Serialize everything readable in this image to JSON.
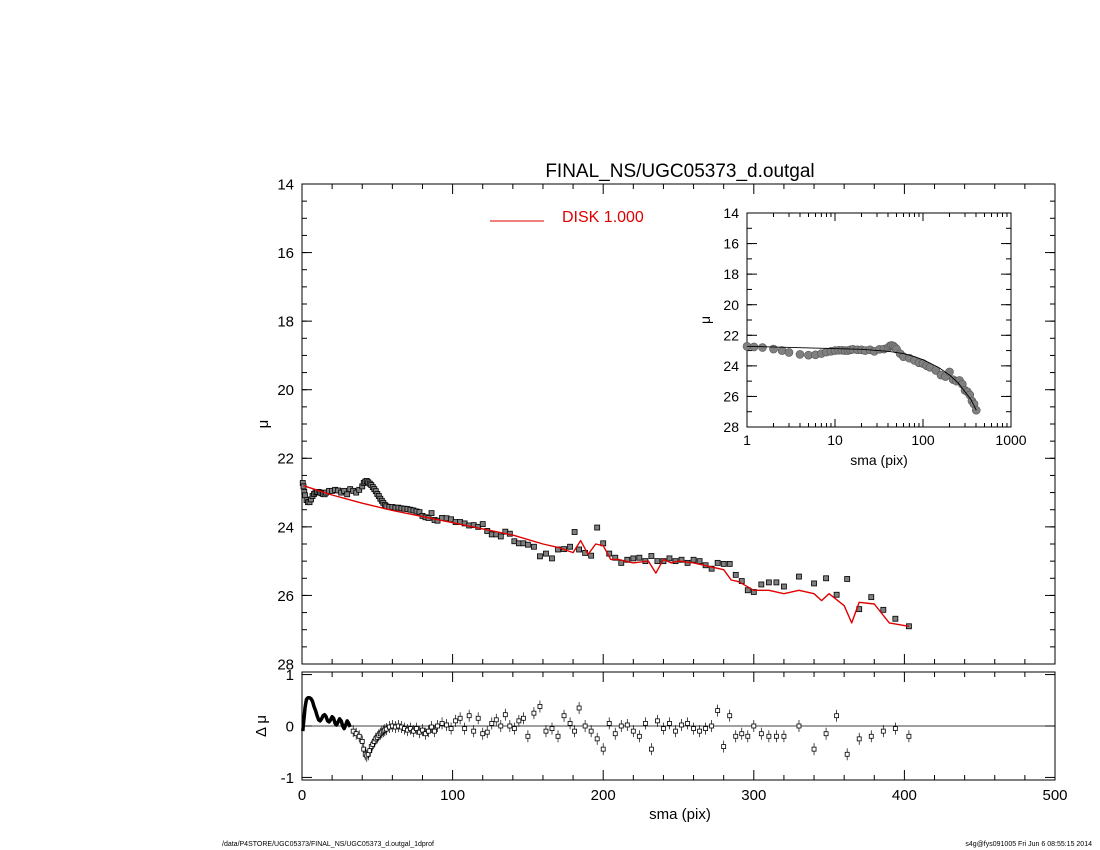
{
  "title": "FINAL_NS/UGC05373_d.outgal",
  "footer": {
    "left": "/data/P4STORE/UGC05373/FINAL_NS/UGC05373_d.outgal_1dprof",
    "right": "s4g@fys091005  Fri Jun  6 08:55:15 2014"
  },
  "colors": {
    "model": "#e00000",
    "data": "#000000",
    "marker_fill": "#808080"
  },
  "chart_data": [
    {
      "id": "main-profile",
      "type": "scatter",
      "title": "FINAL_NS/UGC05373_d.outgal",
      "xlabel": "",
      "ylabel": "μ",
      "xlim": [
        0,
        500
      ],
      "ylim": [
        28,
        14
      ],
      "yaxis_inverted": true,
      "x_tick_labels": [],
      "y_ticks": [
        14,
        16,
        18,
        20,
        22,
        24,
        26,
        28
      ],
      "y_tick_labels": [
        "14",
        "16",
        "18",
        "20",
        "22",
        "24",
        "26",
        "28"
      ],
      "legend": {
        "position": "top-center",
        "entries": [
          {
            "label": "DISK  1.000",
            "color": "#e00000"
          }
        ]
      },
      "series": [
        {
          "name": "DISK  1.000",
          "kind": "line",
          "color": "#e00000",
          "x": [
            1,
            20,
            40,
            60,
            80,
            100,
            120,
            140,
            160,
            170,
            180,
            185,
            190,
            195,
            200,
            205,
            210,
            220,
            230,
            235,
            240,
            245,
            250,
            260,
            270,
            280,
            285,
            290,
            300,
            310,
            320,
            330,
            340,
            345,
            350,
            360,
            365,
            370,
            380,
            390,
            403
          ],
          "y": [
            22.8,
            23.07,
            23.31,
            23.52,
            23.7,
            23.88,
            24.06,
            24.24,
            24.5,
            24.6,
            24.75,
            24.4,
            24.8,
            24.5,
            24.55,
            24.95,
            24.95,
            25.05,
            25.0,
            25.35,
            24.95,
            25.05,
            25.0,
            25.05,
            25.15,
            25.25,
            25.55,
            25.6,
            25.85,
            25.85,
            25.95,
            25.85,
            25.95,
            26.15,
            25.95,
            26.3,
            26.8,
            26.2,
            26.25,
            26.8,
            26.9
          ]
        },
        {
          "name": "",
          "kind": "points",
          "x": [
            0.5,
            1,
            1.5,
            2,
            3,
            4,
            5,
            6,
            7,
            8,
            9,
            10,
            11,
            12,
            13,
            14,
            15,
            16,
            18,
            20,
            22,
            24,
            26,
            28,
            30,
            32,
            34,
            36,
            38,
            40,
            41,
            42,
            43,
            44,
            45,
            46,
            47,
            48,
            49,
            50,
            51,
            52,
            53,
            54,
            55,
            56,
            58,
            60,
            62,
            64,
            66,
            68,
            70,
            72,
            74,
            76,
            78,
            80,
            82,
            84,
            86,
            88,
            90,
            93,
            96,
            99,
            102,
            105,
            108,
            111,
            114,
            117,
            120,
            123,
            126,
            129,
            132,
            135,
            138,
            141,
            144,
            147,
            150,
            154,
            158,
            162,
            166,
            170,
            174,
            178,
            181,
            184,
            188,
            192,
            196,
            200,
            204,
            208,
            212,
            216,
            220,
            224,
            228,
            232,
            236,
            240,
            244,
            248,
            252,
            256,
            260,
            264,
            268,
            272,
            276,
            280,
            284,
            288,
            292,
            296,
            300,
            305,
            310,
            315,
            320,
            330,
            340,
            348,
            355,
            362,
            370,
            378,
            386,
            394,
            403
          ],
          "y": [
            22.72,
            22.82,
            22.98,
            23.08,
            23.22,
            23.28,
            23.28,
            23.2,
            23.1,
            23.04,
            23.0,
            22.98,
            22.98,
            23.0,
            23.02,
            23.04,
            23.05,
            23.0,
            22.95,
            22.95,
            22.92,
            22.94,
            23.0,
            22.95,
            23.05,
            22.9,
            22.95,
            23.0,
            22.92,
            22.82,
            22.72,
            22.68,
            22.66,
            22.7,
            22.74,
            22.78,
            22.84,
            22.9,
            22.96,
            23.04,
            23.1,
            23.18,
            23.24,
            23.3,
            23.36,
            23.4,
            23.42,
            23.42,
            23.44,
            23.44,
            23.46,
            23.47,
            23.48,
            23.5,
            23.52,
            23.55,
            23.57,
            23.68,
            23.72,
            23.74,
            23.6,
            23.8,
            23.82,
            23.74,
            23.75,
            23.78,
            23.86,
            23.86,
            23.9,
            23.96,
            23.95,
            24.0,
            23.92,
            24.12,
            24.22,
            24.22,
            24.28,
            24.14,
            24.2,
            24.42,
            24.48,
            24.48,
            24.52,
            24.58,
            24.86,
            24.78,
            24.92,
            24.66,
            24.65,
            24.58,
            24.15,
            24.66,
            24.76,
            24.84,
            24.02,
            24.48,
            24.78,
            24.9,
            25.05,
            24.96,
            24.92,
            24.9,
            25.0,
            24.85,
            25.0,
            25.0,
            24.92,
            25.0,
            24.96,
            25.05,
            24.96,
            25.0,
            25.12,
            25.22,
            25.05,
            25.08,
            25.08,
            25.4,
            25.58,
            25.85,
            25.9,
            25.68,
            25.62,
            25.62,
            25.74,
            25.45,
            25.65,
            25.5,
            25.98,
            25.52,
            26.4,
            26.05,
            26.42,
            26.68,
            26.9
          ]
        }
      ]
    },
    {
      "id": "residuals",
      "type": "scatter",
      "title": "",
      "xlabel": "sma (pix)",
      "ylabel": "Δ μ",
      "xlim": [
        0,
        500
      ],
      "ylim": [
        -1.05,
        1.05
      ],
      "x_ticks": [
        0,
        100,
        200,
        300,
        400,
        500
      ],
      "x_tick_labels": [
        "0",
        "100",
        "200",
        "300",
        "400",
        "500"
      ],
      "y_ticks": [
        -1,
        0,
        1
      ],
      "y_tick_labels": [
        "-1",
        "0",
        "1"
      ],
      "zero_line": true,
      "series": [
        {
          "name": "",
          "kind": "curve",
          "x": [
            0.5,
            1,
            1.5,
            2,
            2.5,
            3,
            4,
            5,
            6,
            7,
            8,
            9,
            10,
            11,
            12,
            13,
            14,
            15,
            16,
            17,
            18,
            19,
            20,
            21,
            22,
            23,
            24,
            25,
            26,
            27,
            28,
            29,
            30,
            31,
            32
          ],
          "y": [
            -0.1,
            0.05,
            0.2,
            0.35,
            0.45,
            0.52,
            0.55,
            0.55,
            0.53,
            0.48,
            0.38,
            0.3,
            0.2,
            0.12,
            0.1,
            0.14,
            0.2,
            0.22,
            0.18,
            0.1,
            0.08,
            0.12,
            0.18,
            0.15,
            0.05,
            0.02,
            0.08,
            0.14,
            0.1,
            0.0,
            -0.05,
            0.02,
            0.1,
            0.05,
            -0.02
          ]
        },
        {
          "name": "",
          "kind": "points",
          "x": [
            34,
            36,
            38,
            40,
            41,
            42,
            43,
            44,
            45,
            46,
            47,
            48,
            49,
            50,
            51,
            52,
            53,
            54,
            55,
            56,
            58,
            60,
            62,
            64,
            66,
            68,
            70,
            72,
            74,
            76,
            78,
            80,
            82,
            84,
            86,
            88,
            90,
            93,
            96,
            99,
            102,
            105,
            108,
            111,
            114,
            117,
            120,
            123,
            126,
            129,
            132,
            135,
            138,
            141,
            144,
            147,
            150,
            154,
            158,
            162,
            166,
            170,
            174,
            178,
            181,
            184,
            188,
            192,
            196,
            200,
            204,
            208,
            212,
            216,
            220,
            224,
            228,
            232,
            236,
            240,
            244,
            248,
            252,
            256,
            260,
            264,
            268,
            272,
            276,
            280,
            284,
            288,
            292,
            296,
            300,
            305,
            310,
            315,
            320,
            330,
            340,
            348,
            355,
            362,
            370,
            378,
            386,
            394,
            403
          ],
          "y": [
            -0.1,
            -0.15,
            -0.2,
            -0.3,
            -0.45,
            -0.55,
            -0.58,
            -0.55,
            -0.48,
            -0.4,
            -0.36,
            -0.3,
            -0.25,
            -0.22,
            -0.18,
            -0.15,
            -0.12,
            -0.1,
            -0.08,
            -0.06,
            -0.02,
            0.0,
            -0.02,
            0.0,
            -0.02,
            -0.05,
            -0.08,
            -0.05,
            -0.1,
            -0.05,
            -0.12,
            -0.08,
            -0.15,
            -0.1,
            -0.02,
            -0.1,
            0.0,
            0.05,
            0.02,
            -0.05,
            0.1,
            0.15,
            -0.05,
            0.2,
            -0.1,
            0.15,
            -0.15,
            -0.12,
            0.05,
            0.12,
            0.0,
            0.22,
            0.0,
            -0.05,
            0.1,
            0.15,
            -0.2,
            0.25,
            0.38,
            -0.1,
            -0.05,
            -0.2,
            0.2,
            0.05,
            -0.1,
            0.35,
            0.0,
            -0.1,
            -0.25,
            -0.45,
            0.05,
            -0.15,
            0.0,
            0.02,
            -0.1,
            -0.2,
            0.05,
            -0.45,
            0.1,
            -0.05,
            0.05,
            -0.1,
            0.02,
            0.05,
            -0.05,
            -0.1,
            -0.05,
            0.0,
            0.3,
            -0.4,
            0.2,
            -0.2,
            -0.15,
            -0.2,
            0.0,
            -0.15,
            -0.2,
            -0.2,
            -0.2,
            0.0,
            -0.45,
            -0.15,
            0.2,
            -0.55,
            -0.25,
            -0.2,
            -0.1,
            -0.05,
            -0.2
          ]
        }
      ]
    },
    {
      "id": "inset-log-profile",
      "type": "scatter",
      "title": "",
      "xlabel": "sma (pix)",
      "ylabel": "μ",
      "xscale": "log",
      "xlim": [
        1,
        1000
      ],
      "ylim": [
        28,
        14
      ],
      "yaxis_inverted": true,
      "x_ticks": [
        1,
        10,
        100,
        1000
      ],
      "x_tick_labels": [
        "1",
        "10",
        "100",
        "1000"
      ],
      "y_ticks": [
        14,
        16,
        18,
        20,
        22,
        24,
        26,
        28
      ],
      "y_tick_labels": [
        "14",
        "16",
        "18",
        "20",
        "22",
        "24",
        "26",
        "28"
      ],
      "series": [
        {
          "name": "",
          "kind": "line",
          "color": "#000000",
          "x": [
            1,
            20,
            40,
            60,
            80,
            100,
            150,
            200,
            250,
            300,
            350,
            403
          ],
          "y": [
            22.72,
            22.92,
            23.05,
            23.2,
            23.4,
            23.6,
            24.1,
            24.6,
            25.1,
            25.7,
            26.2,
            26.9
          ]
        },
        {
          "name": "",
          "kind": "points",
          "x": [
            1,
            1.2,
            1.5,
            2,
            2.5,
            3,
            4,
            5,
            6,
            7,
            8,
            9,
            10,
            11,
            12,
            13,
            14,
            15,
            16,
            18,
            20,
            22,
            25,
            28,
            32,
            36,
            40,
            42,
            44,
            46,
            48,
            50,
            55,
            60,
            70,
            80,
            90,
            100,
            110,
            120,
            140,
            160,
            180,
            200,
            220,
            240,
            260,
            280,
            300,
            320,
            340,
            360,
            380,
            403
          ],
          "y": [
            22.72,
            22.76,
            22.8,
            22.9,
            23.0,
            23.12,
            23.25,
            23.3,
            23.28,
            23.2,
            23.1,
            23.05,
            23.0,
            22.98,
            22.98,
            23.0,
            23.0,
            22.95,
            22.92,
            22.95,
            22.95,
            23.0,
            22.95,
            23.05,
            22.92,
            22.9,
            22.82,
            22.7,
            22.66,
            22.7,
            22.8,
            22.9,
            23.2,
            23.4,
            23.5,
            23.65,
            23.8,
            23.85,
            24.0,
            24.1,
            24.3,
            24.6,
            24.7,
            24.4,
            24.9,
            25.0,
            24.95,
            25.2,
            25.6,
            25.7,
            25.9,
            26.3,
            26.5,
            26.9
          ]
        }
      ]
    }
  ]
}
